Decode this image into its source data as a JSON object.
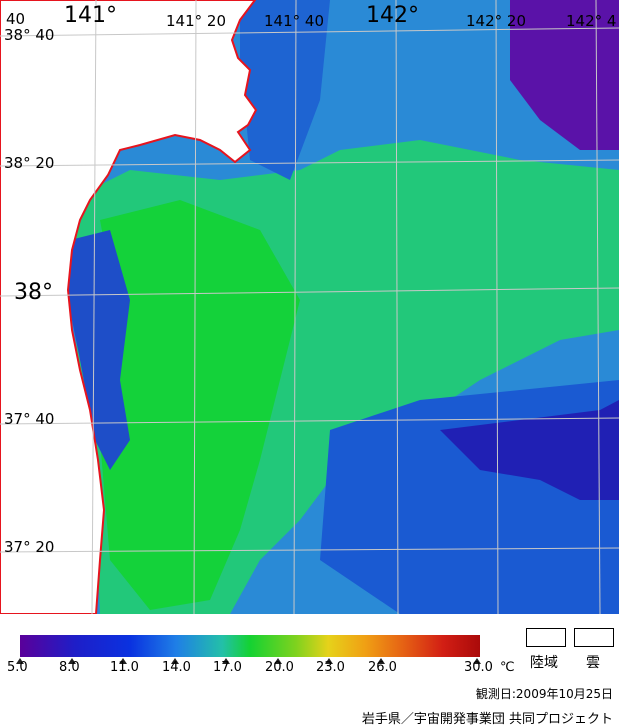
{
  "map": {
    "lon_labels": [
      "141°",
      "141° 20",
      "141° 40",
      "142°",
      "142° 20",
      "142° 4",
      "40"
    ],
    "lat_labels": [
      "38° 40",
      "38° 20",
      "38°",
      "37° 40",
      "37° 20"
    ],
    "land_color": "#ffffff",
    "coast_color": "#e6141e",
    "grid_color": "#c8c8c8"
  },
  "legend": {
    "ticks": [
      "5.0",
      "8.0",
      "11.0",
      "14.0",
      "17.0",
      "20.0",
      "23.0",
      "26.0",
      "30.0"
    ],
    "unit": "℃",
    "land_label": "陸域",
    "cloud_label": "雲",
    "observation_date": "観測日:2009年10月25日",
    "credit": "岩手県／宇宙開発事業団 共同プロジェクト"
  }
}
